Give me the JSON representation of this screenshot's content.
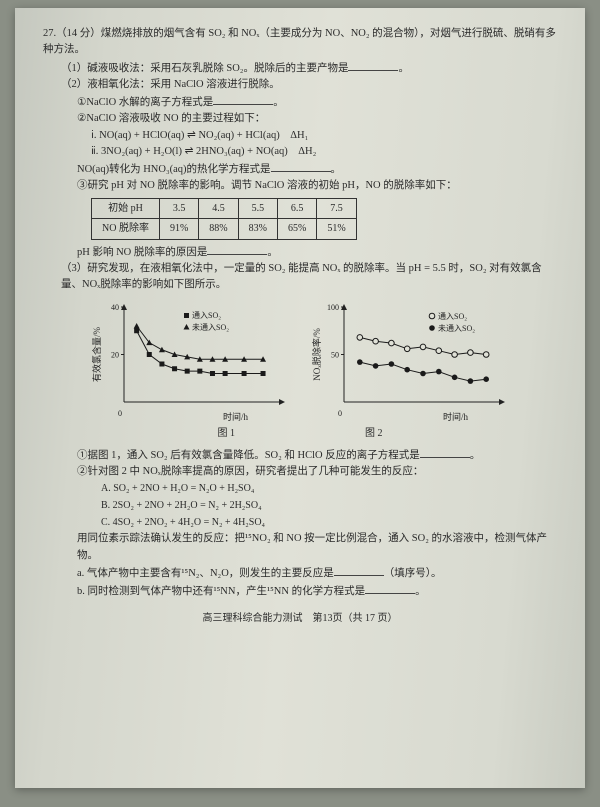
{
  "qnum": "27.（14 分）",
  "intro": "煤燃烧排放的烟气含有 SO₂ 和 NOₓ（主要成分为 NO、NO₂ 的混合物），对烟气进行脱硫、脱硝有多种方法。",
  "p1": "（1）碱液吸收法：采用石灰乳脱除 SO₂。脱除后的主要产物是",
  "p2": "（2）液相氧化法：采用 NaClO 溶液进行脱除。",
  "p2a": "①NaClO 水解的离子方程式是",
  "p2b": "②NaClO 溶液吸收 NO 的主要过程如下：",
  "eq1": "ⅰ. NO(aq) + HClO(aq) ⇌ NO₂(aq) + HCl(aq)　ΔH₁",
  "eq2": "ⅱ. 3NO₂(aq) + H₂O(l) ⇌ 2HNO₃(aq) + NO(aq)　ΔH₂",
  "p2b2": "NO(aq)转化为 HNO₃(aq)的热化学方程式是",
  "p2c": "③研究 pH 对 NO 脱除率的影响。调节 NaClO 溶液的初始 pH，NO 的脱除率如下：",
  "table": {
    "h": [
      "初始 pH",
      "3.5",
      "4.5",
      "5.5",
      "6.5",
      "7.5"
    ],
    "r": [
      "NO 脱除率",
      "91%",
      "88%",
      "83%",
      "65%",
      "51%"
    ]
  },
  "p2c2": "pH 影响 NO 脱除率的原因是",
  "p3": "（3）研究发现，在液相氧化法中，一定量的 SO₂ 能提高 NOₓ 的脱除率。当 pH = 5.5 时，SO₂ 对有效氯含量、NOₓ脱除率的影响如下图所示。",
  "chart1": {
    "ylabel": "有效氯含量/%",
    "xlabel": "时间/h",
    "legend": [
      "■ 通入SO₂",
      "▲ 未通入SO₂"
    ],
    "ylim": [
      0,
      40
    ],
    "yticks": [
      20,
      40
    ],
    "series_tri": [
      [
        8,
        32
      ],
      [
        16,
        25
      ],
      [
        24,
        22
      ],
      [
        32,
        20
      ],
      [
        40,
        19
      ],
      [
        48,
        18
      ],
      [
        56,
        18
      ],
      [
        64,
        18
      ],
      [
        76,
        18
      ],
      [
        88,
        18
      ]
    ],
    "series_sq": [
      [
        8,
        30
      ],
      [
        16,
        20
      ],
      [
        24,
        16
      ],
      [
        32,
        14
      ],
      [
        40,
        13
      ],
      [
        48,
        13
      ],
      [
        56,
        12
      ],
      [
        64,
        12
      ],
      [
        76,
        12
      ],
      [
        88,
        12
      ]
    ],
    "colors": {
      "sq": "#1a1a1a",
      "tri": "#1a1a1a",
      "axis": "#222"
    }
  },
  "chart2": {
    "ylabel": "NOₓ脱除率/%",
    "xlabel": "时间/h",
    "legend": [
      "○ 通入SO₂",
      "● 未通入SO₂"
    ],
    "ylim": [
      0,
      100
    ],
    "yticks": [
      50,
      100
    ],
    "series_open": [
      [
        10,
        68
      ],
      [
        20,
        64
      ],
      [
        30,
        62
      ],
      [
        40,
        56
      ],
      [
        50,
        58
      ],
      [
        60,
        54
      ],
      [
        70,
        50
      ],
      [
        80,
        52
      ],
      [
        90,
        50
      ]
    ],
    "series_fill": [
      [
        10,
        42
      ],
      [
        20,
        38
      ],
      [
        30,
        40
      ],
      [
        40,
        34
      ],
      [
        50,
        30
      ],
      [
        60,
        32
      ],
      [
        70,
        26
      ],
      [
        80,
        22
      ],
      [
        90,
        24
      ]
    ],
    "colors": {
      "open": "#1a1a1a",
      "fill": "#1a1a1a",
      "axis": "#222"
    }
  },
  "cap1": "图 1",
  "cap2": "图 2",
  "p3a": "①据图 1，通入 SO₂ 后有效氯含量降低。SO₂ 和 HClO 反应的离子方程式是",
  "p3b": "②针对图 2 中 NOₓ脱除率提高的原因，研究者提出了几种可能发生的反应：",
  "optA": "A.  SO₂ + 2NO + H₂O = N₂O + H₂SO₄",
  "optB": "B.  2SO₂ + 2NO + 2H₂O = N₂ + 2H₂SO₄",
  "optC": "C.  4SO₂ + 2NO₂ + 4H₂O = N₂ + 4H₂SO₄",
  "p3b2": "用同位素示踪法确认发生的反应：把¹⁵NO₂ 和 NO 按一定比例混合，通入 SO₂ 的水溶液中，检测气体产物。",
  "p3ba": "a. 气体产物中主要含有¹⁵N₂、N₂O，则发生的主要反应是",
  "p3ba2": "（填序号）。",
  "p3bb": "b. 同时检测到气体产物中还有¹⁵NN，产生¹⁵NN 的化学方程式是",
  "footer": "高三理科综合能力测试　第13页（共 17 页）"
}
